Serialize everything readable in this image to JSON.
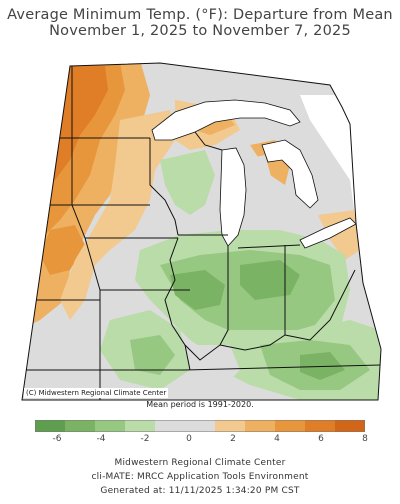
{
  "title_line1": "Average Minimum Temp. (°F): Departure from Mean",
  "title_line2": "November 1, 2025 to November 7, 2025",
  "map_credit": "(C) Midwestern Regional Climate Center",
  "mean_period": "Mean period is 1991-2020.",
  "legend": {
    "colors": [
      "#5f9e4f",
      "#7ab364",
      "#96c882",
      "#b9dca8",
      "#dcdcdc",
      "#dcdcdc",
      "#f2c98e",
      "#eeb061",
      "#e8963c",
      "#e07e28",
      "#d16619"
    ],
    "ticks": [
      "-6",
      "-4",
      "-2",
      "0",
      "2",
      "4",
      "6",
      "8"
    ],
    "tick_values": [
      -6,
      -4,
      -2,
      0,
      2,
      4,
      6,
      8
    ]
  },
  "colors": {
    "lake": "#ffffff",
    "near_normal": "#dcdcdc",
    "border": "#111111"
  },
  "footer": {
    "line1": "Midwestern Regional Climate Center",
    "line2": "cli-MATE: MRCC Application Tools Environment",
    "line3": "Generated at: 11/11/2025 1:34:20 PM CST"
  }
}
